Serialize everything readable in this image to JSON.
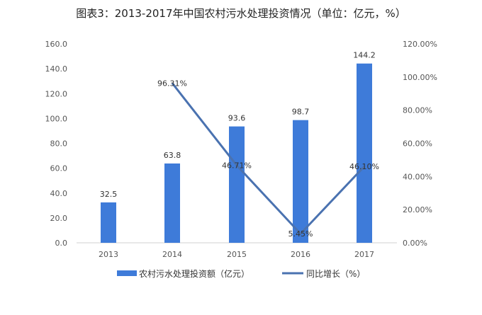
{
  "chart_data": {
    "type": "bar+line",
    "title": "图表3：2013-2017年中国农村污水处理投资情况（单位：亿元，%）",
    "categories": [
      "2013",
      "2014",
      "2015",
      "2016",
      "2017"
    ],
    "series": [
      {
        "name": "农村污水处理投资额（亿元）",
        "type": "bar",
        "axis": "left",
        "values": [
          32.5,
          63.8,
          93.6,
          98.7,
          144.2
        ],
        "labels": [
          "32.5",
          "63.8",
          "93.6",
          "98.7",
          "144.2"
        ],
        "color": "#3e7bd9"
      },
      {
        "name": "同比增长（%）",
        "type": "line",
        "axis": "right",
        "values": [
          null,
          96.31,
          46.71,
          5.45,
          46.1
        ],
        "labels": [
          "",
          "96.31%",
          "46.71%",
          "5.45%",
          "46.10%"
        ],
        "color": "#4a72b0"
      }
    ],
    "left_axis": {
      "ylim": [
        0,
        160
      ],
      "ticks": [
        "0.0",
        "20.0",
        "40.0",
        "60.0",
        "80.0",
        "100.0",
        "120.0",
        "140.0",
        "160.0"
      ]
    },
    "right_axis": {
      "ylim": [
        0,
        120
      ],
      "ticks": [
        "0.00%",
        "20.00%",
        "40.00%",
        "60.00%",
        "80.00%",
        "100.00%",
        "120.00%"
      ]
    },
    "grid": false,
    "legend": "bottom"
  }
}
